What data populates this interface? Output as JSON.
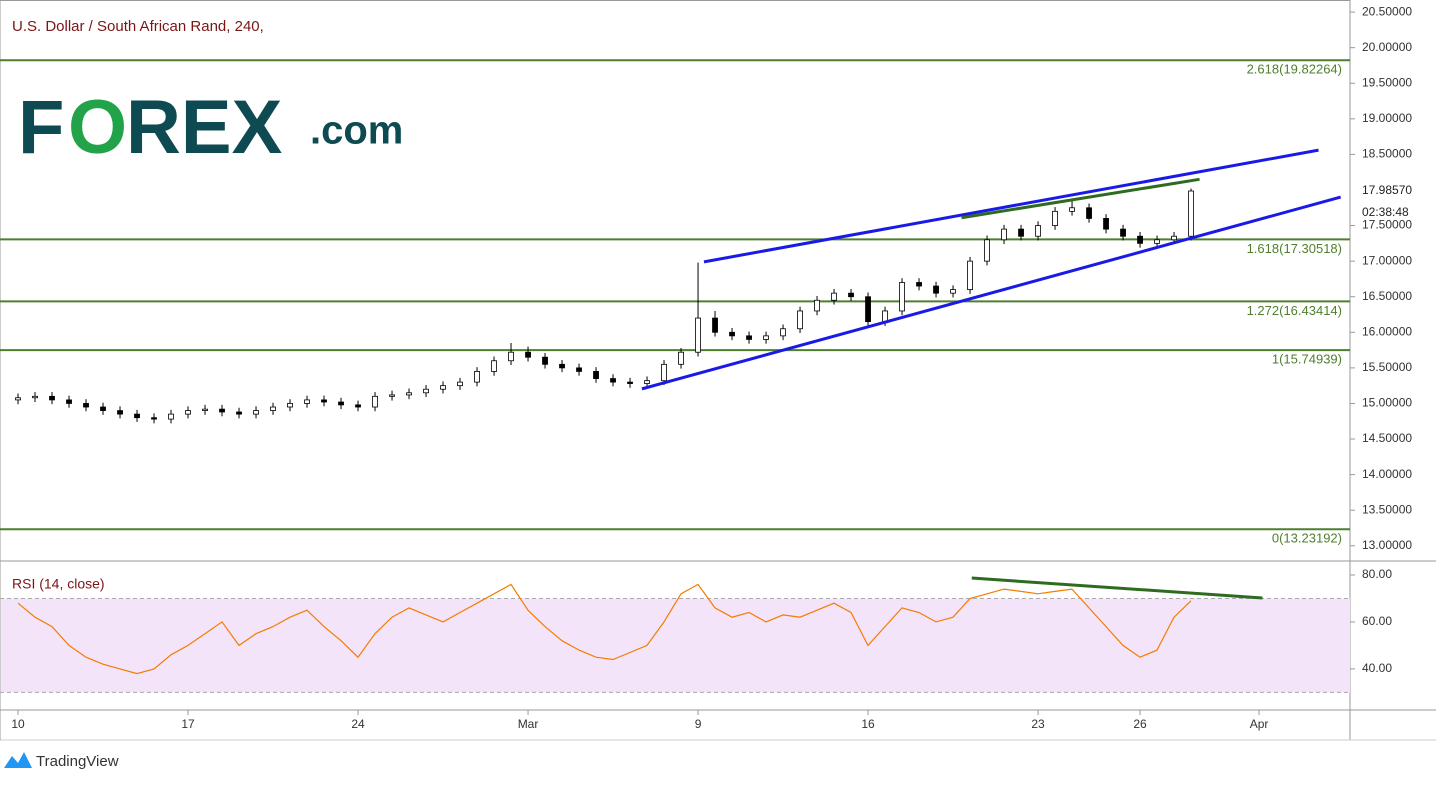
{
  "chart_data": [
    {
      "type": "candlestick",
      "title": "U.S. Dollar / South African Rand, 240,",
      "logo": [
        "F",
        "O",
        "REX",
        ".com"
      ],
      "open": [
        15.05,
        15.08,
        15.1,
        15.05,
        15.0,
        14.95,
        14.9,
        14.85,
        14.8,
        14.78,
        14.85,
        14.9,
        14.92,
        14.88,
        14.85,
        14.9,
        14.95,
        15.0,
        15.05,
        15.02,
        14.98,
        14.95,
        15.1,
        15.12,
        15.15,
        15.2,
        15.25,
        15.3,
        15.45,
        15.6,
        15.72,
        15.65,
        15.55,
        15.5,
        15.45,
        15.35,
        15.3,
        15.28,
        15.32,
        15.55,
        15.72,
        16.2,
        16.0,
        15.95,
        15.9,
        15.95,
        16.05,
        16.3,
        16.45,
        16.55,
        16.5,
        16.15,
        16.3,
        16.7,
        16.65,
        16.55,
        16.6,
        17.0,
        17.3,
        17.45,
        17.35,
        17.5,
        17.7,
        17.75,
        17.6,
        17.45,
        17.35,
        17.25,
        17.3,
        17.35
      ],
      "high": [
        15.14,
        15.16,
        15.16,
        15.11,
        15.06,
        15.01,
        14.96,
        14.91,
        14.86,
        14.91,
        14.96,
        14.98,
        14.98,
        14.94,
        14.96,
        15.01,
        15.06,
        15.11,
        15.11,
        15.08,
        15.04,
        15.16,
        15.18,
        15.21,
        15.26,
        15.31,
        15.36,
        15.51,
        15.66,
        15.85,
        15.8,
        15.71,
        15.61,
        15.56,
        15.51,
        15.41,
        15.36,
        15.38,
        15.61,
        15.78,
        16.98,
        16.3,
        16.06,
        16.01,
        16.01,
        16.11,
        16.36,
        16.51,
        16.61,
        16.61,
        16.56,
        16.36,
        16.76,
        16.76,
        16.71,
        16.66,
        17.06,
        17.36,
        17.51,
        17.51,
        17.56,
        17.76,
        17.85,
        17.81,
        17.66,
        17.51,
        17.41,
        17.36,
        17.41,
        18.02
      ],
      "low": [
        14.99,
        15.02,
        14.99,
        14.94,
        14.89,
        14.84,
        14.79,
        14.74,
        14.72,
        14.72,
        14.79,
        14.84,
        14.82,
        14.79,
        14.79,
        14.84,
        14.89,
        14.94,
        14.96,
        14.92,
        14.89,
        14.89,
        15.04,
        15.06,
        15.09,
        15.14,
        15.19,
        15.24,
        15.39,
        15.54,
        15.59,
        15.49,
        15.44,
        15.39,
        15.29,
        15.24,
        15.22,
        15.22,
        15.26,
        15.49,
        15.66,
        15.94,
        15.89,
        15.84,
        15.84,
        15.89,
        15.99,
        16.24,
        16.39,
        16.44,
        16.09,
        16.09,
        16.24,
        16.59,
        16.49,
        16.49,
        16.54,
        16.94,
        17.24,
        17.29,
        17.29,
        17.44,
        17.64,
        17.54,
        17.39,
        17.29,
        17.19,
        17.19,
        17.24,
        17.29
      ],
      "close": [
        15.08,
        15.1,
        15.05,
        15.0,
        14.95,
        14.9,
        14.85,
        14.8,
        14.78,
        14.85,
        14.9,
        14.92,
        14.88,
        14.85,
        14.9,
        14.95,
        15.0,
        15.05,
        15.02,
        14.98,
        14.95,
        15.1,
        15.12,
        15.15,
        15.2,
        15.25,
        15.3,
        15.45,
        15.6,
        15.72,
        15.65,
        15.55,
        15.5,
        15.45,
        15.35,
        15.3,
        15.28,
        15.32,
        15.55,
        15.72,
        16.2,
        16.0,
        15.95,
        15.9,
        15.95,
        16.05,
        16.3,
        16.45,
        16.55,
        16.5,
        16.15,
        16.3,
        16.7,
        16.65,
        16.55,
        16.6,
        17.0,
        17.3,
        17.45,
        17.35,
        17.5,
        17.7,
        17.75,
        17.6,
        17.45,
        17.35,
        17.25,
        17.3,
        17.35,
        17.9857
      ],
      "xlim": [
        -1.06,
        78.35
      ],
      "xticks": [
        {
          "value": 0,
          "label": "10"
        },
        {
          "value": 10,
          "label": "17"
        },
        {
          "value": 20,
          "label": "24"
        },
        {
          "value": 30,
          "label": "Mar"
        },
        {
          "value": 40,
          "label": "9"
        },
        {
          "value": 50,
          "label": "16"
        },
        {
          "value": 60,
          "label": "23"
        },
        {
          "value": 66,
          "label": "26"
        },
        {
          "value": 73,
          "label": "Apr"
        }
      ],
      "ylim": [
        12.8,
        20.67
      ],
      "yticks": [
        {
          "value": 13.0,
          "label": "13.00000"
        },
        {
          "value": 13.5,
          "label": "13.50000"
        },
        {
          "value": 14.0,
          "label": "14.00000"
        },
        {
          "value": 14.5,
          "label": "14.50000"
        },
        {
          "value": 15.0,
          "label": "15.00000"
        },
        {
          "value": 15.5,
          "label": "15.50000"
        },
        {
          "value": 16.0,
          "label": "16.00000"
        },
        {
          "value": 16.5,
          "label": "16.50000"
        },
        {
          "value": 17.0,
          "label": "17.00000"
        },
        {
          "value": 17.5,
          "label": "17.50000"
        },
        {
          "value": 18.5,
          "label": "18.50000"
        },
        {
          "value": 19.0,
          "label": "19.00000"
        },
        {
          "value": 19.5,
          "label": "19.50000"
        },
        {
          "value": 20.0,
          "label": "20.00000"
        },
        {
          "value": 20.5,
          "label": "20.50000"
        }
      ],
      "levels": [
        {
          "value": 19.82264,
          "label": "2.618(19.82264)"
        },
        {
          "value": 17.30518,
          "label": "1.618(17.30518)"
        },
        {
          "value": 16.43414,
          "label": "1.272(16.43414)"
        },
        {
          "value": 15.74939,
          "label": "1(15.74939)"
        },
        {
          "value": 13.23192,
          "label": "0(13.23192)"
        }
      ],
      "level_color": "#4f7f2e",
      "trendlines": [
        {
          "color": "#1a1ae6",
          "x": [
            40.35,
            76.5
          ],
          "y": [
            16.99,
            18.56
          ]
        },
        {
          "color": "#1a1ae6",
          "x": [
            36.7,
            77.8
          ],
          "y": [
            15.205,
            17.9
          ]
        },
        {
          "color": "#2e6b1f",
          "x": [
            55.5,
            69.5
          ],
          "y": [
            17.61,
            18.15
          ]
        }
      ],
      "last_price": {
        "value": 17.9857,
        "label": "17.98570",
        "countdown": "02:38:48"
      }
    },
    {
      "type": "line",
      "title": "RSI (14, close)",
      "color": "#f57c00",
      "values": [
        68,
        62,
        58,
        50,
        45,
        42,
        40,
        38,
        40,
        46,
        50,
        55,
        60,
        50,
        55,
        58,
        62,
        65,
        58,
        52,
        45,
        55,
        62,
        66,
        63,
        60,
        64,
        68,
        72,
        76,
        65,
        58,
        52,
        48,
        45,
        44,
        47,
        50,
        60,
        72,
        76,
        66,
        62,
        64,
        60,
        63,
        62,
        65,
        68,
        64,
        50,
        58,
        66,
        64,
        60,
        62,
        70,
        72,
        74,
        73,
        72,
        73,
        74,
        66,
        58,
        50,
        45,
        48,
        62,
        69
      ],
      "xlim": [
        -1.06,
        78.35
      ],
      "ylim": [
        22.5,
        85.1
      ],
      "yticks": [
        {
          "value": 40,
          "label": "40.00"
        },
        {
          "value": 60,
          "label": "60.00"
        },
        {
          "value": 80,
          "label": "80.00"
        }
      ],
      "bands": [
        30,
        70
      ],
      "trendlines": [
        {
          "color": "#2e6b1f",
          "x": [
            56.1,
            73.2
          ],
          "y": [
            78.7,
            70.2
          ]
        }
      ]
    }
  ],
  "footer": "TradingView"
}
